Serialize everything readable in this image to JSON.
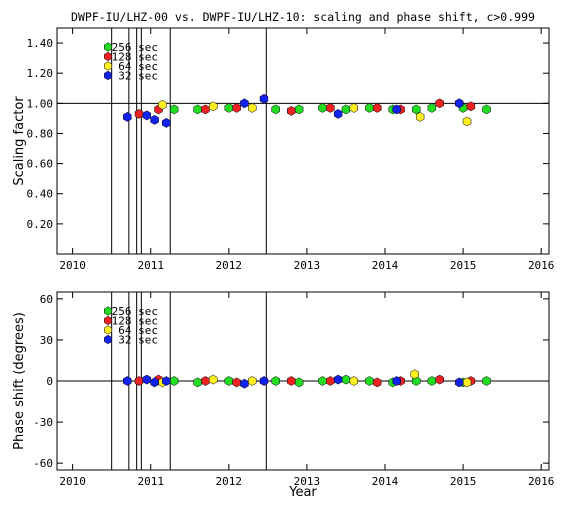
{
  "chart_data": [
    {
      "type": "scatter",
      "title": "DWPF-IU/LHZ-00 vs. DWPF-IU/LHZ-10: scaling and phase shift, c>0.999",
      "xlabel": "",
      "ylabel": "Scaling factor",
      "xlim": [
        2009.8,
        2016.1
      ],
      "ylim": [
        0.0,
        1.5
      ],
      "x_ticks": [
        "2010",
        "2011",
        "2012",
        "2013",
        "2014",
        "2015",
        "2016"
      ],
      "y_ticks": [
        "0.20",
        "0.40",
        "0.60",
        "0.80",
        "1.00",
        "1.20",
        "1.40"
      ],
      "y_tick_values": [
        0.2,
        0.4,
        0.6,
        0.8,
        1.0,
        1.2,
        1.4
      ],
      "reference_line": 1.0,
      "event_lines": [
        2010.5,
        2010.72,
        2010.82,
        2010.88,
        2011.25,
        2012.48
      ],
      "legend_placement": "top-left",
      "series": [
        {
          "name": "256 sec",
          "color": "#22dd22",
          "x": [
            2011.3,
            2011.6,
            2012.0,
            2012.6,
            2012.9,
            2013.2,
            2013.5,
            2013.8,
            2014.1,
            2014.4,
            2014.6,
            2015.0,
            2015.3
          ],
          "y": [
            0.96,
            0.96,
            0.97,
            0.96,
            0.96,
            0.97,
            0.96,
            0.97,
            0.96,
            0.96,
            0.97,
            0.97,
            0.96
          ]
        },
        {
          "name": "128 sec",
          "color": "#ee2222",
          "x": [
            2010.85,
            2011.1,
            2011.7,
            2012.1,
            2012.8,
            2013.3,
            2013.9,
            2014.2,
            2014.7,
            2015.1
          ],
          "y": [
            0.93,
            0.96,
            0.96,
            0.97,
            0.95,
            0.97,
            0.97,
            0.96,
            1.0,
            0.98
          ]
        },
        {
          "name": "64 sec",
          "color": "#ffee22",
          "x": [
            2011.15,
            2011.8,
            2012.3,
            2013.6,
            2014.45,
            2015.05
          ],
          "y": [
            0.99,
            0.98,
            0.97,
            0.97,
            0.91,
            0.88
          ]
        },
        {
          "name": "32 sec",
          "color": "#1122ee",
          "x": [
            2010.7,
            2010.95,
            2011.05,
            2011.2,
            2012.2,
            2012.45,
            2013.4,
            2014.15,
            2014.95
          ],
          "y": [
            0.91,
            0.92,
            0.89,
            0.87,
            1.0,
            1.03,
            0.93,
            0.96,
            1.0
          ]
        }
      ]
    },
    {
      "type": "scatter",
      "title": "",
      "xlabel": "Year",
      "ylabel": "Phase shift (degrees)",
      "xlim": [
        2009.8,
        2016.1
      ],
      "ylim": [
        -65,
        65
      ],
      "x_ticks": [
        "2010",
        "2011",
        "2012",
        "2013",
        "2014",
        "2015",
        "2016"
      ],
      "y_ticks": [
        "-60",
        "-30",
        "0",
        "30",
        "60"
      ],
      "y_tick_values": [
        -60,
        -30,
        0,
        30,
        60
      ],
      "reference_line": 0,
      "event_lines": [
        2010.5,
        2010.72,
        2010.82,
        2010.88,
        2011.25,
        2012.48
      ],
      "legend_placement": "top-left",
      "series": [
        {
          "name": "256 sec",
          "color": "#22dd22",
          "x": [
            2011.3,
            2011.6,
            2012.0,
            2012.6,
            2012.9,
            2013.2,
            2013.5,
            2013.8,
            2014.1,
            2014.4,
            2014.6,
            2015.0,
            2015.3
          ],
          "y": [
            0,
            -1,
            0,
            0,
            -1,
            0,
            1,
            0,
            -1,
            0,
            0,
            -1,
            0
          ]
        },
        {
          "name": "128 sec",
          "color": "#ee2222",
          "x": [
            2010.85,
            2011.1,
            2011.7,
            2012.1,
            2012.8,
            2013.3,
            2013.9,
            2014.2,
            2014.7,
            2015.1
          ],
          "y": [
            0,
            1,
            0,
            -1,
            0,
            0,
            -1,
            0,
            1,
            0
          ]
        },
        {
          "name": "64 sec",
          "color": "#ffee22",
          "x": [
            2011.15,
            2011.8,
            2012.3,
            2013.6,
            2014.38,
            2015.05
          ],
          "y": [
            -1,
            1,
            0,
            0,
            5,
            -1
          ]
        },
        {
          "name": "32 sec",
          "color": "#1122ee",
          "x": [
            2010.7,
            2010.95,
            2011.05,
            2011.2,
            2012.2,
            2012.45,
            2013.4,
            2014.15,
            2014.95
          ],
          "y": [
            0,
            1,
            -1,
            0,
            -2,
            0,
            1,
            0,
            -1
          ]
        }
      ]
    }
  ]
}
